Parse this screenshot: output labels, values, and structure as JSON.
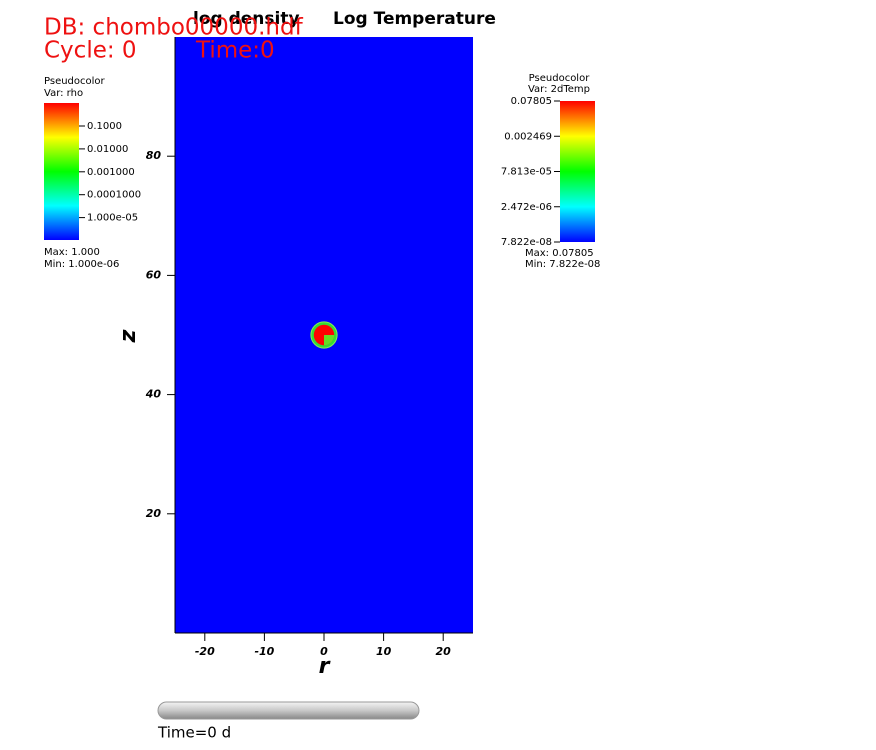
{
  "header": {
    "db": "DB: chombo00000.hdf",
    "cycle": "Cycle: 0",
    "time": "Time:0"
  },
  "chart_data": {
    "type": "pseudocolor",
    "titles": [
      "log density",
      "Log Temperature"
    ],
    "xlabel": "r",
    "ylabel": "z",
    "xlim": [
      -25,
      25
    ],
    "ylim": [
      0,
      100
    ],
    "xticks": [
      -20,
      -10,
      0,
      10,
      20
    ],
    "yticks": [
      20,
      40,
      60,
      80
    ],
    "field_color": "#0000ff",
    "source": {
      "x": 0,
      "y": 50,
      "radius": 2.2
    },
    "legends": [
      {
        "title": "Pseudocolor",
        "var": "Var: rho",
        "ticks": [
          "0.1000",
          "0.01000",
          "0.001000",
          "0.0001000",
          "1.000e-05"
        ],
        "max": "Max:  1.000",
        "min": "Min:  1.000e-06"
      },
      {
        "title": "Pseudocolor",
        "var": "Var: 2dTemp",
        "ticks": [
          "0.07805",
          "0.002469",
          "7.813e-05",
          "2.472e-06",
          "7.822e-08"
        ],
        "max": "Max:  0.07805",
        "min": "Min:  7.822e-08"
      }
    ]
  },
  "slider": {
    "label": "Time=0 d"
  }
}
